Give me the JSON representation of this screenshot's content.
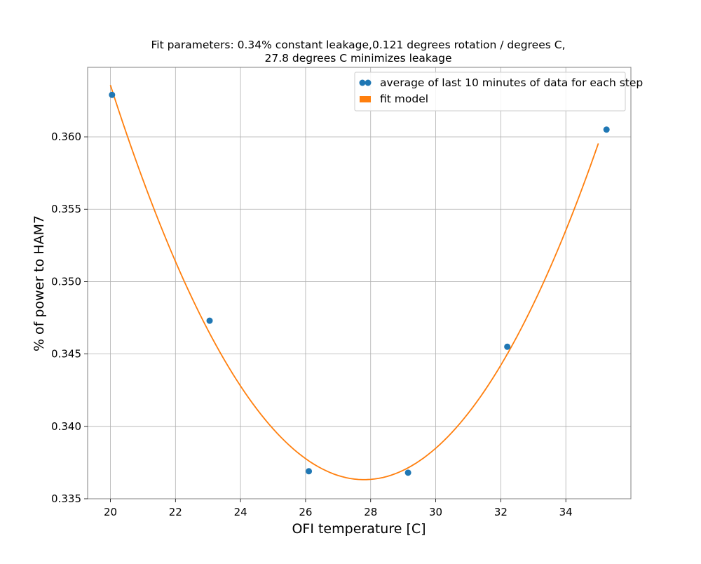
{
  "chart_data": {
    "type": "scatter",
    "title": [
      "Fit parameters: 0.34% constant leakage,0.121 degrees rotation / degrees C,",
      "27.8 degrees C minimizes leakage"
    ],
    "xlabel": "OFI temperature [C]",
    "ylabel": "% of power to HAM7",
    "xlim": [
      19.3,
      36.0
    ],
    "ylim": [
      0.335,
      0.3648
    ],
    "xticks": [
      20,
      22,
      24,
      26,
      28,
      30,
      32,
      34
    ],
    "yticks": [
      0.335,
      0.34,
      0.345,
      0.35,
      0.355,
      0.36
    ],
    "ytick_labels": [
      "0.335",
      "0.340",
      "0.345",
      "0.350",
      "0.355",
      "0.360"
    ],
    "grid": true,
    "legend_position": "top-right",
    "series": [
      {
        "name": "average of last 10 minutes of data for each step",
        "kind": "scatter",
        "color": "#1f77b4",
        "x": [
          20.05,
          23.05,
          26.1,
          29.15,
          32.2,
          35.25
        ],
        "y": [
          0.3629,
          0.3473,
          0.3369,
          0.3368,
          0.3455,
          0.3605
        ]
      },
      {
        "name": "fit model",
        "kind": "line",
        "color": "#ff7f0e",
        "curve": {
          "form": "quadratic",
          "vertex_x": 27.8,
          "vertex_y": 0.33632,
          "coefficient": 0.000448,
          "x_range": [
            20.0,
            35.0
          ]
        }
      }
    ]
  }
}
